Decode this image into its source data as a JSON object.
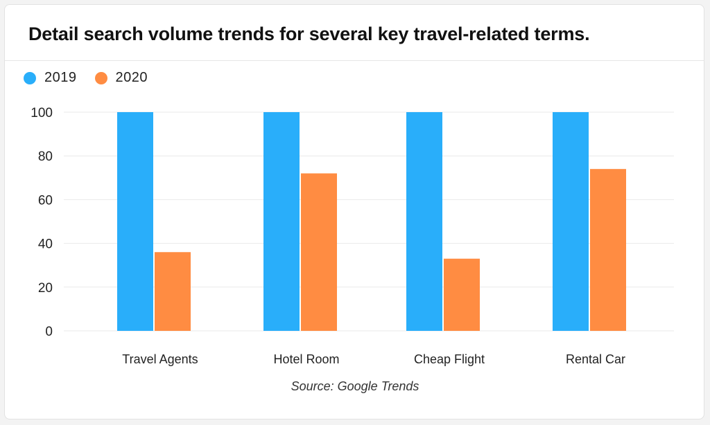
{
  "title": "Detail search volume trends for several key travel-related terms.",
  "source": "Source: Google Trends",
  "colors": {
    "2019": "#29aefa",
    "2020": "#ff8c42",
    "grid": "#e9e9e9",
    "text": "#222222"
  },
  "legend": [
    {
      "name": "2019",
      "color": "#29aefa"
    },
    {
      "name": "2020",
      "color": "#ff8c42"
    }
  ],
  "chart_data": {
    "type": "bar",
    "title": "Detail search volume trends for several key travel-related terms.",
    "xlabel": "",
    "ylabel": "",
    "categories": [
      "Travel Agents",
      "Hotel Room",
      "Cheap Flight",
      "Rental Car"
    ],
    "series": [
      {
        "name": "2019",
        "values": [
          100,
          100,
          100,
          100
        ]
      },
      {
        "name": "2020",
        "values": [
          36,
          72,
          33,
          74
        ]
      }
    ],
    "ylim": [
      0,
      100
    ],
    "yticks": [
      0,
      20,
      40,
      60,
      80,
      100
    ],
    "grid": true,
    "legend_position": "top-left"
  }
}
